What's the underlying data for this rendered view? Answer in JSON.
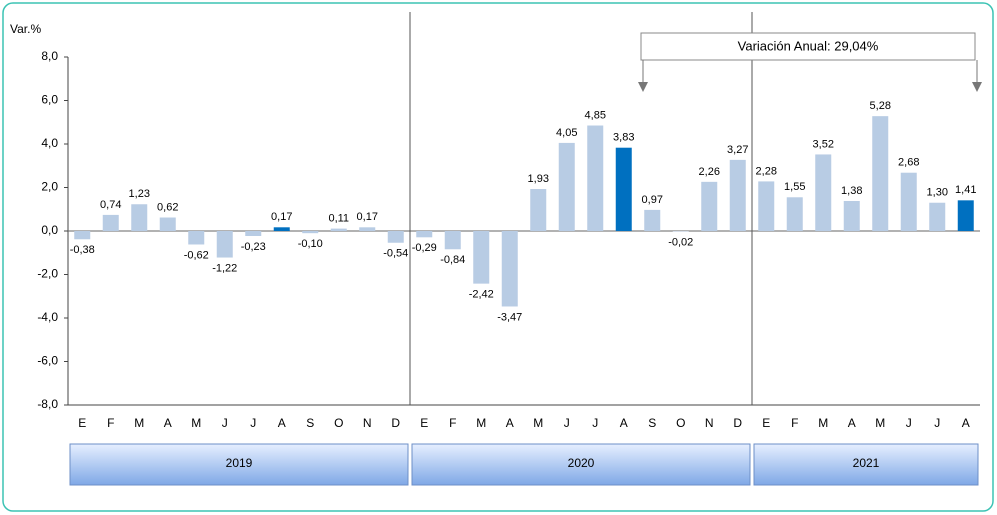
{
  "chart_data": {
    "type": "bar",
    "y_label": "Var.%",
    "annotation": "Variación Anual: 29,04%",
    "categories": [
      "E",
      "F",
      "M",
      "A",
      "M",
      "J",
      "J",
      "A",
      "S",
      "O",
      "N",
      "D",
      "E",
      "F",
      "M",
      "A",
      "M",
      "J",
      "J",
      "A",
      "S",
      "O",
      "N",
      "D",
      "E",
      "F",
      "M",
      "A",
      "M",
      "J",
      "J",
      "A"
    ],
    "values": [
      -0.38,
      0.74,
      1.23,
      0.62,
      -0.62,
      -1.22,
      -0.23,
      0.17,
      -0.1,
      0.11,
      0.17,
      -0.54,
      -0.29,
      -0.84,
      -2.42,
      -3.47,
      1.93,
      4.05,
      4.85,
      3.83,
      0.97,
      -0.02,
      2.26,
      3.27,
      2.28,
      1.55,
      3.52,
      1.38,
      5.28,
      2.68,
      1.3,
      1.41
    ],
    "value_labels": [
      "-0,38",
      "0,74",
      "1,23",
      "0,62",
      "-0,62",
      "-1,22",
      "-0,23",
      "0,17",
      "-0,10",
      "0,11",
      "0,17",
      "-0,54",
      "-0,29",
      "-0,84",
      "-2,42",
      "-3,47",
      "1,93",
      "4,05",
      "4,85",
      "3,83",
      "0,97",
      "-0,02",
      "2,26",
      "3,27",
      "2,28",
      "1,55",
      "3,52",
      "1,38",
      "5,28",
      "2,68",
      "1,30",
      "1,41"
    ],
    "colors": [
      "#b8cce4",
      "#b8cce4",
      "#b8cce4",
      "#b8cce4",
      "#b8cce4",
      "#b8cce4",
      "#b8cce4",
      "#0070c0",
      "#b8cce4",
      "#b8cce4",
      "#b8cce4",
      "#b8cce4",
      "#b8cce4",
      "#b8cce4",
      "#b8cce4",
      "#b8cce4",
      "#b8cce4",
      "#b8cce4",
      "#b8cce4",
      "#0070c0",
      "#b8cce4",
      "#b8cce4",
      "#b8cce4",
      "#b8cce4",
      "#b8cce4",
      "#b8cce4",
      "#b8cce4",
      "#b8cce4",
      "#b8cce4",
      "#b8cce4",
      "#b8cce4",
      "#0070c0"
    ],
    "groups": [
      {
        "label": "2019",
        "count": 12
      },
      {
        "label": "2020",
        "count": 12
      },
      {
        "label": "2021",
        "count": 8
      }
    ],
    "ylim": [
      -8,
      8
    ],
    "yticks": [
      {
        "value": 8,
        "label": "8,0"
      },
      {
        "value": 6,
        "label": "6,0"
      },
      {
        "value": 4,
        "label": "4,0"
      },
      {
        "value": 2,
        "label": "2,0"
      },
      {
        "value": 0,
        "label": "0,0"
      },
      {
        "value": -2,
        "label": "-2,0"
      },
      {
        "value": -4,
        "label": "-4,0"
      },
      {
        "value": -6,
        "label": "-6,0"
      },
      {
        "value": -8,
        "label": "-8,0"
      }
    ]
  }
}
